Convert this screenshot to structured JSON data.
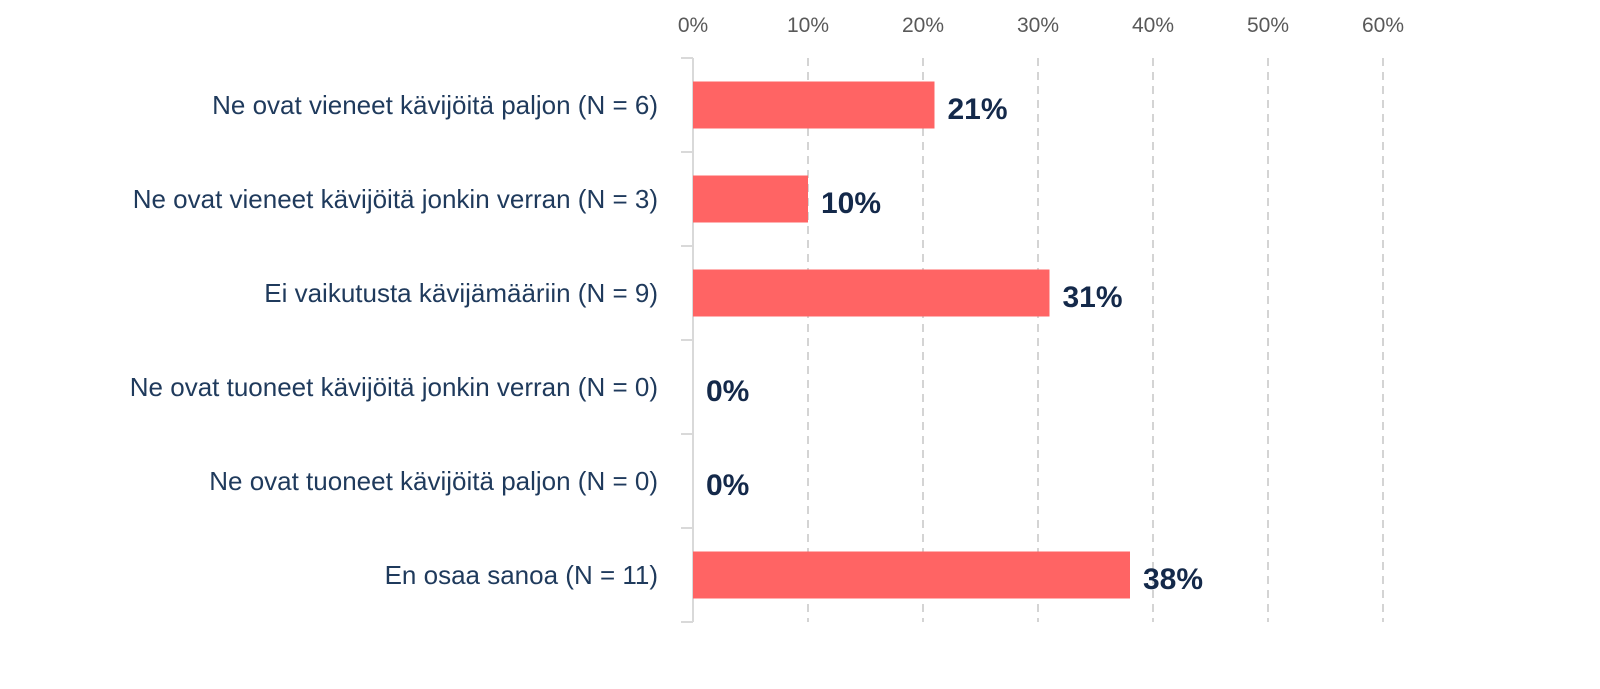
{
  "chart_data": {
    "type": "bar",
    "orientation": "horizontal",
    "categories": [
      "Ne ovat vieneet kävijöitä paljon (N = 6)",
      "Ne ovat vieneet kävijöitä jonkin verran (N = 3)",
      "Ei vaikutusta kävijämääriin (N = 9)",
      "Ne ovat tuoneet kävijöitä jonkin verran (N = 0)",
      "Ne ovat tuoneet kävijöitä paljon (N = 0)",
      "En osaa sanoa  (N = 11)"
    ],
    "values": [
      21,
      10,
      31,
      0,
      0,
      38
    ],
    "data_labels": [
      "21%",
      "10%",
      "31%",
      "0%",
      "0%",
      "38%"
    ],
    "x_ticks": [
      0,
      10,
      20,
      30,
      40,
      50,
      60
    ],
    "x_tick_labels": [
      "0%",
      "10%",
      "20%",
      "30%",
      "40%",
      "50%",
      "60%"
    ],
    "xlim": [
      0,
      60
    ],
    "x_axis_position": "top",
    "grid": "vertical dashed",
    "legend": "none",
    "title": "",
    "xlabel": "",
    "ylabel": "",
    "bar_color": "#ff6464",
    "label_color": "#14294a",
    "category_text_color": "#1f3a5c"
  }
}
